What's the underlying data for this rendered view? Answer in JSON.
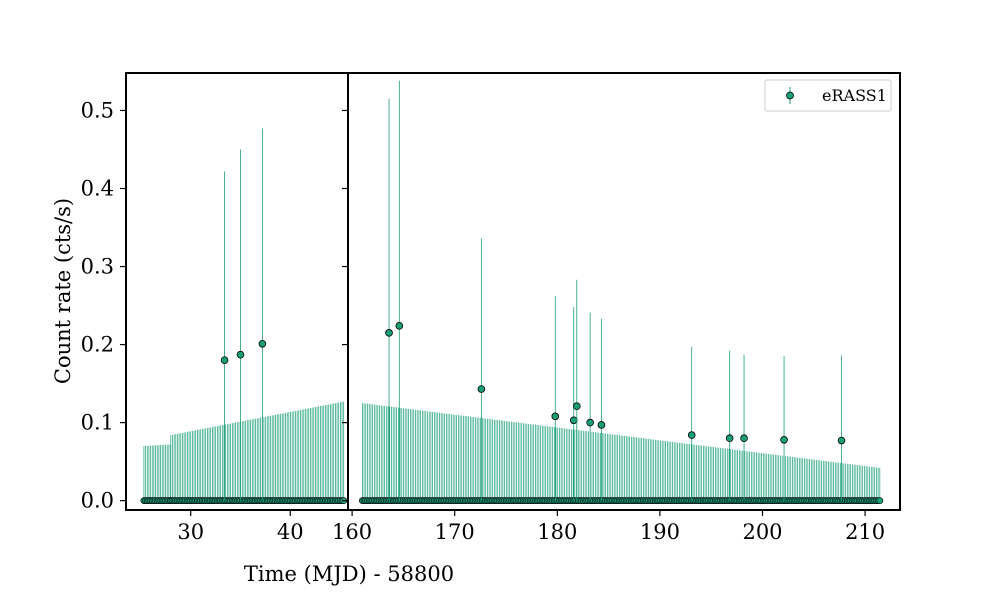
{
  "chart_data": {
    "type": "scatter",
    "xlabel": "Time (MJD) - 58800",
    "ylabel": "Count rate (cts/s)",
    "legend": {
      "placement": "top-right",
      "label": "eRASS1"
    },
    "colors": {
      "marker": "#1a9e77",
      "edge": "#000000",
      "errorbar": "#1a9e77"
    },
    "ylim": [
      -0.012,
      0.548
    ],
    "yticks": [
      0.0,
      0.1,
      0.2,
      0.3,
      0.4,
      0.5
    ],
    "ytick_labels": [
      "0.0",
      "0.1",
      "0.2",
      "0.3",
      "0.4",
      "0.5"
    ],
    "panels": [
      {
        "name": "left",
        "xlim": [
          23.5,
          45.8
        ],
        "xticks": [
          30,
          40
        ],
        "xtick_labels": [
          "30",
          "40"
        ],
        "segments": [
          {
            "start": 25.3,
            "end": 27.9,
            "step": 0.167,
            "yerr_start": 0.07,
            "yerr_end": 0.072
          },
          {
            "start": 28.0,
            "end": 45.3,
            "step": 0.167,
            "yerr_start": 0.084,
            "yerr_end": 0.127
          }
        ],
        "detections": [
          {
            "x": 33.4,
            "y": 0.18,
            "yerr": 0.242
          },
          {
            "x": 35.0,
            "y": 0.187,
            "yerr": 0.263
          },
          {
            "x": 37.2,
            "y": 0.201,
            "yerr": 0.276
          }
        ]
      },
      {
        "name": "right",
        "xlim": [
          159.6,
          213.4
        ],
        "xticks": [
          160,
          170,
          180,
          190,
          200,
          210
        ],
        "xtick_labels": [
          "160",
          "170",
          "180",
          "190",
          "200",
          "210"
        ],
        "segments": [
          {
            "start": 161.0,
            "end": 211.4,
            "step": 0.167,
            "yerr_start": 0.125,
            "yerr_end": 0.042
          }
        ],
        "detections": [
          {
            "x": 163.6,
            "y": 0.215,
            "yerr": 0.3
          },
          {
            "x": 164.6,
            "y": 0.224,
            "yerr": 0.314
          },
          {
            "x": 172.6,
            "y": 0.143,
            "yerr": 0.193
          },
          {
            "x": 179.8,
            "y": 0.108,
            "yerr": 0.154
          },
          {
            "x": 181.6,
            "y": 0.103,
            "yerr": 0.145
          },
          {
            "x": 181.9,
            "y": 0.121,
            "yerr": 0.162
          },
          {
            "x": 183.2,
            "y": 0.1,
            "yerr": 0.141
          },
          {
            "x": 184.3,
            "y": 0.097,
            "yerr": 0.136
          },
          {
            "x": 193.1,
            "y": 0.084,
            "yerr": 0.113
          },
          {
            "x": 196.8,
            "y": 0.08,
            "yerr": 0.112
          },
          {
            "x": 198.2,
            "y": 0.08,
            "yerr": 0.107
          },
          {
            "x": 202.1,
            "y": 0.078,
            "yerr": 0.107
          },
          {
            "x": 207.7,
            "y": 0.077,
            "yerr": 0.109
          }
        ]
      }
    ]
  }
}
